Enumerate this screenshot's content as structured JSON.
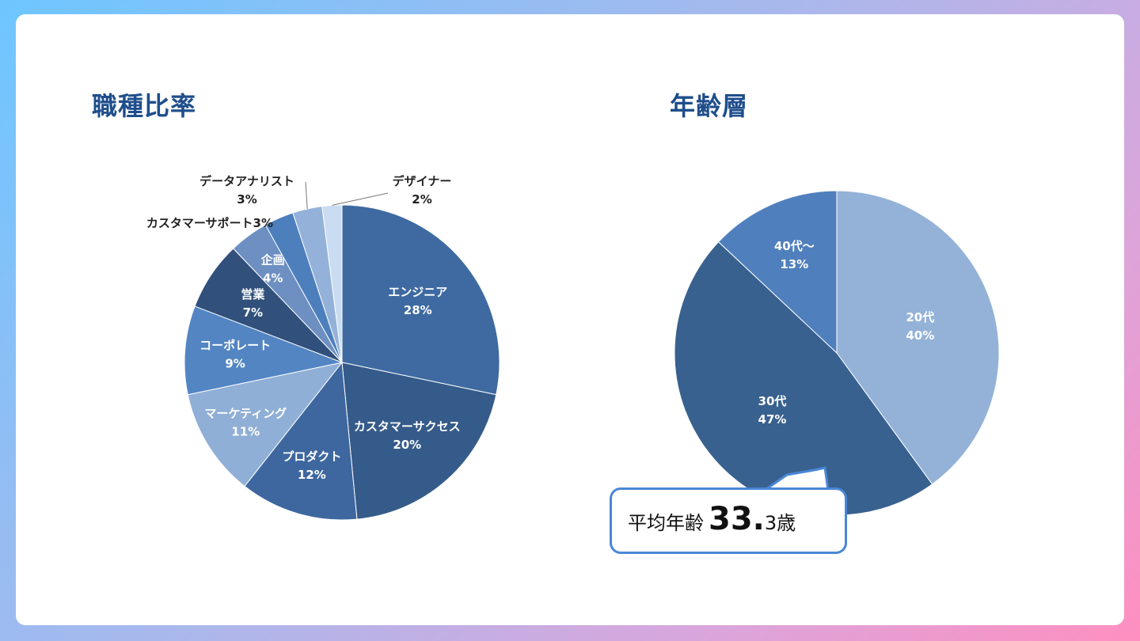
{
  "chart_data": [
    {
      "type": "pie",
      "title": "職種比率",
      "categories": [
        "エンジニア",
        "カスタマーサクセス",
        "プロダクト",
        "マーケティング",
        "コーポレート",
        "営業",
        "企画",
        "カスタマーサポート",
        "データアナリスト",
        "デザイナー"
      ],
      "values": [
        28,
        20,
        12,
        11,
        9,
        7,
        4,
        3,
        3,
        2
      ],
      "labels": [
        "28%",
        "20%",
        "12%",
        "11%",
        "9%",
        "7%",
        "4%",
        "3%",
        "3%",
        "2%"
      ],
      "colors": [
        "#3e6aa1",
        "#355b8a",
        "#3d679e",
        "#90afd6",
        "#5385c3",
        "#31507b",
        "#6d8fc2",
        "#4d7fbd",
        "#94b2d9",
        "#c9dcf1"
      ],
      "legend": "none"
    },
    {
      "type": "pie",
      "title": "年齢層",
      "categories": [
        "20代",
        "30代",
        "40代～"
      ],
      "values": [
        40,
        47,
        13
      ],
      "labels": [
        "40%",
        "47%",
        "13%"
      ],
      "colors": [
        "#94b2d8",
        "#38618f",
        "#4f7fbd"
      ],
      "legend": "none"
    }
  ],
  "callout": {
    "label": "平均年齢",
    "value_int": "33.",
    "value_dec": "3",
    "unit": "歳"
  }
}
